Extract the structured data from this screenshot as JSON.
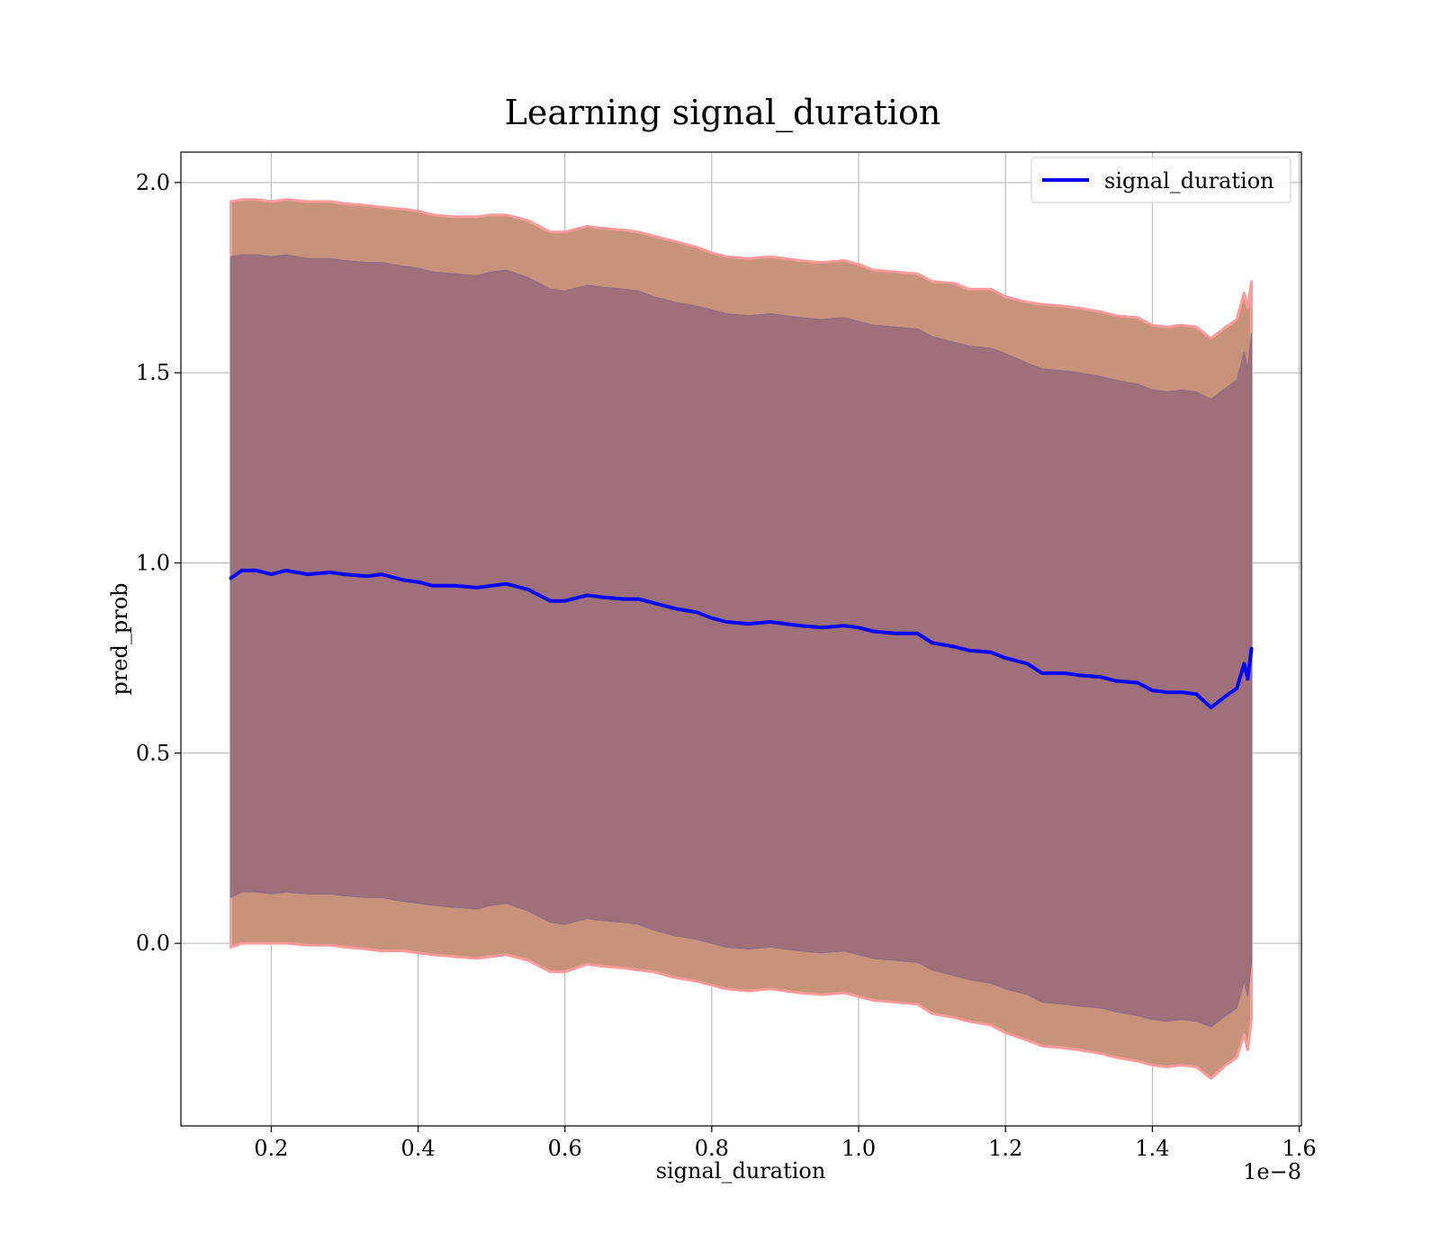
{
  "chart_data": {
    "type": "area",
    "title": "Learning signal_duration",
    "xlabel": "signal_duration",
    "ylabel": "pred_prob",
    "x_offset_text": "1e−8",
    "xlim": [
      0.077,
      1.603
    ],
    "ylim": [
      -0.48,
      2.08
    ],
    "xticks": [
      0.2,
      0.4,
      0.6,
      0.8,
      1.0,
      1.2,
      1.4,
      1.6
    ],
    "xtick_labels": [
      "0.2",
      "0.4",
      "0.6",
      "0.8",
      "1.0",
      "1.2",
      "1.4",
      "1.6"
    ],
    "yticks": [
      0.0,
      0.5,
      1.0,
      1.5,
      2.0
    ],
    "ytick_labels": [
      "0.0",
      "0.5",
      "1.0",
      "1.5",
      "2.0"
    ],
    "grid": true,
    "legend_position": "top-right",
    "colors": {
      "line": "#0000ff",
      "outer_band": "#c7937a",
      "outer_band_edge": "#ff9a9a",
      "inner_band": "#a0707a",
      "grid": "#b0b0b0"
    },
    "series": [
      {
        "name": "signal_duration",
        "x": [
          0.145,
          0.16,
          0.18,
          0.2,
          0.22,
          0.25,
          0.28,
          0.3,
          0.33,
          0.35,
          0.38,
          0.4,
          0.42,
          0.45,
          0.48,
          0.5,
          0.52,
          0.55,
          0.58,
          0.6,
          0.63,
          0.65,
          0.68,
          0.7,
          0.72,
          0.75,
          0.78,
          0.8,
          0.82,
          0.85,
          0.88,
          0.9,
          0.92,
          0.95,
          0.98,
          1.0,
          1.02,
          1.05,
          1.08,
          1.1,
          1.13,
          1.15,
          1.18,
          1.2,
          1.23,
          1.25,
          1.28,
          1.3,
          1.33,
          1.35,
          1.38,
          1.4,
          1.42,
          1.44,
          1.46,
          1.48,
          1.5,
          1.515,
          1.525,
          1.53,
          1.535
        ],
        "y": [
          0.96,
          0.98,
          0.98,
          0.97,
          0.98,
          0.97,
          0.975,
          0.97,
          0.965,
          0.97,
          0.955,
          0.95,
          0.94,
          0.94,
          0.935,
          0.94,
          0.945,
          0.93,
          0.9,
          0.9,
          0.915,
          0.91,
          0.905,
          0.905,
          0.895,
          0.88,
          0.87,
          0.855,
          0.845,
          0.84,
          0.845,
          0.84,
          0.835,
          0.83,
          0.835,
          0.83,
          0.82,
          0.815,
          0.815,
          0.79,
          0.78,
          0.77,
          0.765,
          0.75,
          0.735,
          0.71,
          0.71,
          0.705,
          0.7,
          0.69,
          0.685,
          0.665,
          0.66,
          0.66,
          0.655,
          0.62,
          0.65,
          0.67,
          0.735,
          0.695,
          0.775
        ]
      }
    ],
    "outer_band": {
      "upper": [
        1.95,
        1.955,
        1.955,
        1.95,
        1.955,
        1.95,
        1.95,
        1.945,
        1.94,
        1.935,
        1.93,
        1.925,
        1.915,
        1.91,
        1.91,
        1.915,
        1.915,
        1.9,
        1.87,
        1.87,
        1.885,
        1.88,
        1.875,
        1.87,
        1.86,
        1.845,
        1.83,
        1.815,
        1.805,
        1.8,
        1.805,
        1.8,
        1.795,
        1.79,
        1.795,
        1.785,
        1.77,
        1.765,
        1.76,
        1.74,
        1.735,
        1.72,
        1.72,
        1.7,
        1.685,
        1.68,
        1.675,
        1.67,
        1.66,
        1.65,
        1.645,
        1.625,
        1.62,
        1.625,
        1.62,
        1.59,
        1.62,
        1.64,
        1.71,
        1.67,
        1.74
      ],
      "lower": [
        -0.01,
        0.0,
        0.0,
        0.0,
        0.0,
        -0.005,
        -0.005,
        -0.01,
        -0.015,
        -0.02,
        -0.02,
        -0.025,
        -0.03,
        -0.035,
        -0.04,
        -0.035,
        -0.03,
        -0.045,
        -0.075,
        -0.075,
        -0.055,
        -0.06,
        -0.065,
        -0.07,
        -0.075,
        -0.09,
        -0.1,
        -0.11,
        -0.12,
        -0.125,
        -0.12,
        -0.125,
        -0.13,
        -0.135,
        -0.13,
        -0.14,
        -0.15,
        -0.155,
        -0.16,
        -0.185,
        -0.195,
        -0.205,
        -0.215,
        -0.235,
        -0.255,
        -0.27,
        -0.275,
        -0.28,
        -0.29,
        -0.3,
        -0.31,
        -0.32,
        -0.325,
        -0.32,
        -0.325,
        -0.355,
        -0.32,
        -0.3,
        -0.24,
        -0.28,
        -0.2
      ]
    },
    "inner_band": {
      "upper": [
        1.805,
        1.81,
        1.81,
        1.805,
        1.81,
        1.8,
        1.8,
        1.795,
        1.79,
        1.79,
        1.78,
        1.775,
        1.765,
        1.76,
        1.755,
        1.765,
        1.77,
        1.75,
        1.72,
        1.715,
        1.73,
        1.725,
        1.72,
        1.715,
        1.7,
        1.685,
        1.675,
        1.665,
        1.655,
        1.65,
        1.655,
        1.65,
        1.645,
        1.64,
        1.645,
        1.635,
        1.625,
        1.62,
        1.615,
        1.595,
        1.58,
        1.57,
        1.565,
        1.55,
        1.525,
        1.51,
        1.505,
        1.5,
        1.49,
        1.48,
        1.47,
        1.455,
        1.45,
        1.455,
        1.45,
        1.43,
        1.46,
        1.48,
        1.555,
        1.51,
        1.605
      ],
      "lower": [
        0.12,
        0.135,
        0.135,
        0.13,
        0.135,
        0.13,
        0.13,
        0.125,
        0.12,
        0.12,
        0.11,
        0.105,
        0.1,
        0.095,
        0.09,
        0.1,
        0.105,
        0.085,
        0.055,
        0.05,
        0.065,
        0.06,
        0.055,
        0.05,
        0.035,
        0.02,
        0.01,
        0.0,
        -0.01,
        -0.015,
        -0.01,
        -0.015,
        -0.02,
        -0.025,
        -0.02,
        -0.03,
        -0.04,
        -0.045,
        -0.05,
        -0.07,
        -0.085,
        -0.095,
        -0.105,
        -0.12,
        -0.135,
        -0.155,
        -0.16,
        -0.165,
        -0.17,
        -0.18,
        -0.19,
        -0.2,
        -0.205,
        -0.2,
        -0.205,
        -0.22,
        -0.19,
        -0.17,
        -0.1,
        -0.14,
        -0.05
      ]
    }
  }
}
